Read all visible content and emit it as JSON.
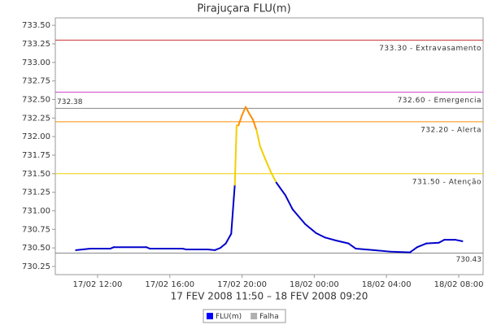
{
  "chart_data": {
    "type": "line",
    "title": "Pirajuçara FLU(m)",
    "subtitle": "17 FEV 2008 11:50 – 18 FEV 2008 09:20",
    "x": [
      10.8,
      11.6,
      12.7,
      12.9,
      14.7,
      14.9,
      16.7,
      16.9,
      18.1,
      18.5,
      18.8,
      19.1,
      19.4,
      19.6,
      19.7,
      19.8,
      20.0,
      20.2,
      20.4,
      20.6,
      20.8,
      21.0,
      21.3,
      21.6,
      21.9,
      22.4,
      22.8,
      23.5,
      24.1,
      24.6,
      25.2,
      25.9,
      26.3,
      27.3,
      28.2,
      29.3,
      29.7,
      30.2,
      30.9,
      31.2,
      31.8,
      32.2
    ],
    "series": [
      {
        "name": "FLU(m)",
        "color": "#0000cc",
        "values": [
          730.47,
          730.49,
          730.49,
          730.51,
          730.51,
          730.49,
          730.49,
          730.48,
          730.48,
          730.47,
          730.5,
          730.56,
          730.69,
          731.35,
          732.15,
          732.15,
          732.29,
          732.4,
          732.31,
          732.23,
          732.09,
          731.87,
          731.69,
          731.52,
          731.38,
          731.21,
          731.02,
          730.82,
          730.7,
          730.64,
          730.6,
          730.56,
          730.49,
          730.47,
          730.45,
          730.44,
          730.51,
          730.56,
          730.57,
          730.61,
          730.61,
          730.59
        ]
      }
    ],
    "legend": [
      {
        "name": "FLU(m)",
        "color": "#0000ff"
      },
      {
        "name": "Falha",
        "color": "#b0b0b0"
      }
    ],
    "thresholds": [
      {
        "value": 733.3,
        "label": "733.30 - Extravasamento",
        "color": "#cc3333"
      },
      {
        "value": 732.6,
        "label": "732.60 - Emergencia",
        "color": "#cc44cc"
      },
      {
        "value": 732.2,
        "label": "732.20 - Alerta",
        "color": "#ff8c00"
      },
      {
        "value": 731.5,
        "label": "731.50 - Atenção",
        "color": "#f0d000"
      }
    ],
    "markers": [
      {
        "value": 732.38,
        "side": "left"
      },
      {
        "value": 730.43,
        "side": "right"
      }
    ],
    "xlim": [
      9.66,
      33.35
    ],
    "xticks": [
      {
        "value": 12,
        "label": "17/02 12:00"
      },
      {
        "value": 16,
        "label": "17/02 16:00"
      },
      {
        "value": 20,
        "label": "17/02 20:00"
      },
      {
        "value": 24,
        "label": "18/02 00:00"
      },
      {
        "value": 28,
        "label": "18/02 04:00"
      },
      {
        "value": 32,
        "label": "18/02 08:00"
      }
    ],
    "ylim": [
      730.14,
      733.6
    ],
    "yticks": [
      730.25,
      {
        "value": 730.5,
        "label": "730.50"
      },
      730.75,
      {
        "value": 731,
        "label": "731.00"
      },
      731.25,
      {
        "value": 731.5,
        "label": "731.50"
      },
      731.75,
      {
        "value": 732,
        "label": "732.00"
      },
      732.25,
      {
        "value": 732.5,
        "label": "732.50"
      },
      732.75,
      {
        "value": 733,
        "label": "733.00"
      },
      733.25,
      {
        "value": 733.5,
        "label": "733.50"
      }
    ]
  }
}
